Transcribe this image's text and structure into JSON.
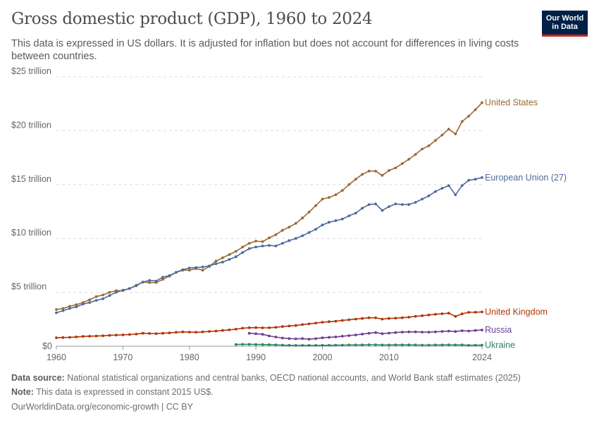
{
  "header": {
    "title": "Gross domestic product (GDP), 1960 to 2024",
    "subtitle": "This data is expressed in US dollars. It is adjusted for inflation but does not account for differences in living costs between countries.",
    "logo_line1": "Our World",
    "logo_line2": "in Data"
  },
  "footer": {
    "source_label": "Data source:",
    "source_text": "National statistical organizations and central banks, OECD national accounts, and World Bank staff estimates (2025)",
    "note_label": "Note:",
    "note_text": "This data is expressed in constant 2015 US$.",
    "url_text": "OurWorldinData.org/economic-growth | CC BY"
  },
  "chart_data": {
    "type": "line",
    "title": "Gross domestic product (GDP), 1960 to 2024",
    "xlim": [
      1960,
      2024
    ],
    "ylim": [
      0,
      25
    ],
    "x_ticks": [
      {
        "value": 1960,
        "label": "1960"
      },
      {
        "value": 1970,
        "label": "1970"
      },
      {
        "value": 1980,
        "label": "1980"
      },
      {
        "value": 1990,
        "label": "1990"
      },
      {
        "value": 2000,
        "label": "2000"
      },
      {
        "value": 2010,
        "label": "2010"
      },
      {
        "value": 2024,
        "label": "2024"
      }
    ],
    "y_ticks": [
      {
        "value": 0,
        "label": "$0"
      },
      {
        "value": 5,
        "label": "$5 trillion"
      },
      {
        "value": 10,
        "label": "$10 trillion"
      },
      {
        "value": 15,
        "label": "$15 trillion"
      },
      {
        "value": 20,
        "label": "$20 trillion"
      },
      {
        "value": 25,
        "label": "$25 trillion"
      }
    ],
    "grid": "horizontal dashed",
    "legend": "inline labels at line ends (right)",
    "series": [
      {
        "name": "United States",
        "color": "#9a6a33",
        "start_year": 1960,
        "values": [
          3.4,
          3.5,
          3.7,
          3.85,
          4.05,
          4.3,
          4.6,
          4.75,
          5.0,
          5.15,
          5.15,
          5.35,
          5.6,
          5.95,
          5.9,
          5.9,
          6.2,
          6.5,
          6.85,
          7.05,
          7.05,
          7.2,
          7.05,
          7.4,
          7.9,
          8.2,
          8.5,
          8.8,
          9.2,
          9.55,
          9.75,
          9.7,
          10.05,
          10.35,
          10.75,
          11.05,
          11.4,
          11.9,
          12.45,
          13.05,
          13.65,
          13.8,
          14.05,
          14.45,
          15.0,
          15.5,
          15.95,
          16.25,
          16.25,
          15.85,
          16.3,
          16.55,
          16.95,
          17.35,
          17.8,
          18.3,
          18.6,
          19.1,
          19.6,
          20.15,
          19.7,
          20.85,
          21.35,
          21.95,
          22.6
        ]
      },
      {
        "name": "European Union (27)",
        "color": "#4c6a9c",
        "start_year": 1960,
        "values": [
          3.1,
          3.3,
          3.5,
          3.65,
          3.9,
          4.05,
          4.25,
          4.4,
          4.7,
          5.0,
          5.2,
          5.35,
          5.65,
          5.95,
          6.1,
          6.05,
          6.4,
          6.55,
          6.85,
          7.1,
          7.25,
          7.3,
          7.35,
          7.45,
          7.65,
          7.8,
          8.05,
          8.3,
          8.7,
          9.05,
          9.2,
          9.3,
          9.35,
          9.3,
          9.55,
          9.8,
          10.0,
          10.25,
          10.55,
          10.85,
          11.25,
          11.5,
          11.65,
          11.8,
          12.1,
          12.35,
          12.8,
          13.15,
          13.2,
          12.6,
          12.95,
          13.2,
          13.15,
          13.15,
          13.35,
          13.65,
          13.95,
          14.35,
          14.65,
          14.9,
          14.05,
          14.9,
          15.4,
          15.5,
          15.65
        ]
      },
      {
        "name": "United Kingdom",
        "color": "#b13507",
        "start_year": 1960,
        "values": [
          0.78,
          0.8,
          0.82,
          0.86,
          0.9,
          0.92,
          0.94,
          0.96,
          1.0,
          1.03,
          1.05,
          1.08,
          1.12,
          1.2,
          1.18,
          1.16,
          1.2,
          1.23,
          1.28,
          1.32,
          1.3,
          1.29,
          1.32,
          1.37,
          1.4,
          1.46,
          1.51,
          1.58,
          1.67,
          1.71,
          1.72,
          1.7,
          1.71,
          1.75,
          1.82,
          1.87,
          1.92,
          2.0,
          2.07,
          2.14,
          2.22,
          2.27,
          2.32,
          2.39,
          2.45,
          2.51,
          2.57,
          2.63,
          2.63,
          2.51,
          2.57,
          2.6,
          2.64,
          2.69,
          2.77,
          2.83,
          2.89,
          2.96,
          3.01,
          3.06,
          2.76,
          3.0,
          3.14,
          3.15,
          3.18
        ]
      },
      {
        "name": "Russia",
        "color": "#6d3e91",
        "start_year": 1989,
        "values": [
          1.2,
          1.15,
          1.1,
          0.95,
          0.85,
          0.75,
          0.7,
          0.68,
          0.7,
          0.65,
          0.7,
          0.78,
          0.82,
          0.86,
          0.92,
          0.98,
          1.04,
          1.12,
          1.2,
          1.26,
          1.16,
          1.21,
          1.26,
          1.3,
          1.32,
          1.33,
          1.3,
          1.3,
          1.33,
          1.37,
          1.4,
          1.36,
          1.43,
          1.41,
          1.46,
          1.5
        ]
      },
      {
        "name": "Ukraine",
        "color": "#2c8465",
        "start_year": 1987,
        "values": [
          0.16,
          0.17,
          0.17,
          0.16,
          0.15,
          0.14,
          0.12,
          0.1,
          0.08,
          0.07,
          0.07,
          0.07,
          0.07,
          0.08,
          0.08,
          0.09,
          0.1,
          0.11,
          0.11,
          0.12,
          0.13,
          0.13,
          0.11,
          0.11,
          0.12,
          0.12,
          0.12,
          0.11,
          0.1,
          0.1,
          0.11,
          0.11,
          0.12,
          0.11,
          0.12,
          0.08,
          0.09,
          0.09
        ]
      }
    ]
  }
}
